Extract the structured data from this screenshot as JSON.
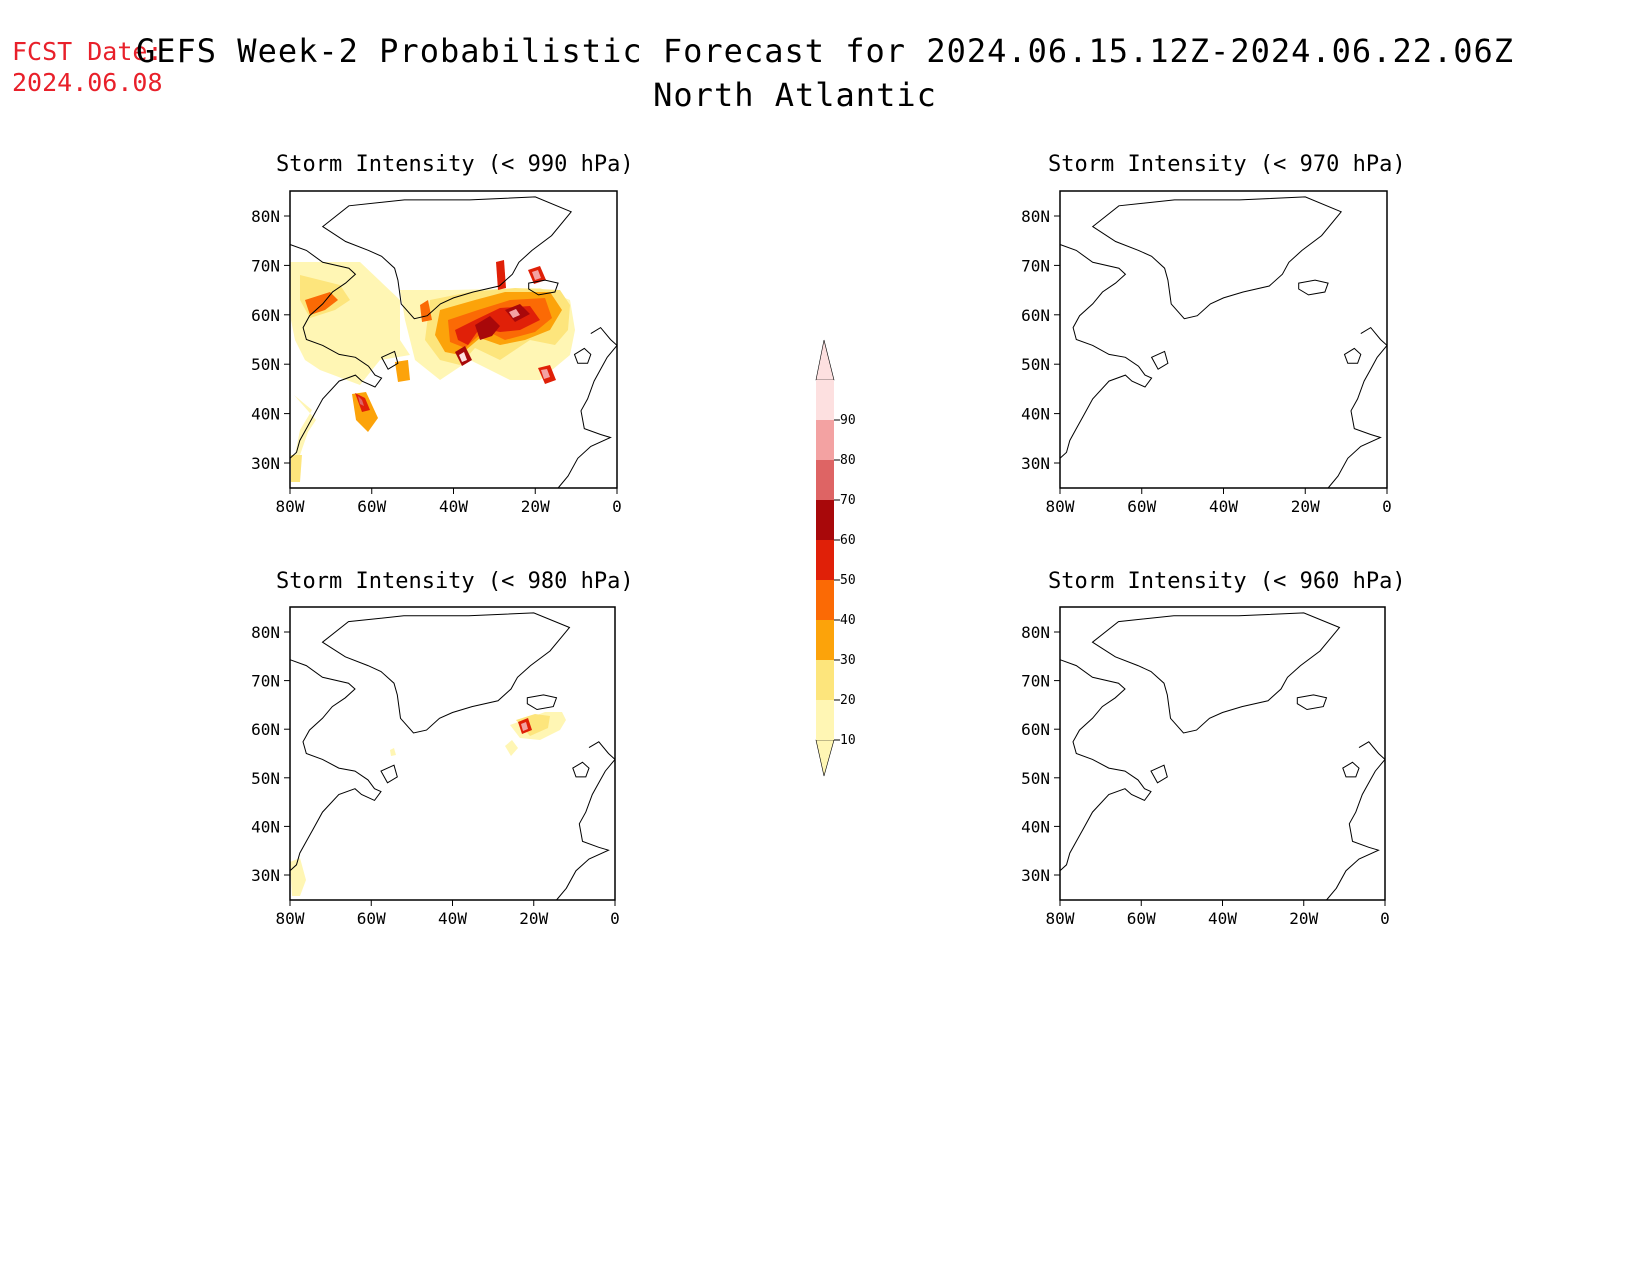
{
  "header": {
    "fcst_label": "FCST Date:",
    "fcst_date": "2024.06.08",
    "title": "GEFS Week-2 Probabilistic Forecast for 2024.06.15.12Z-2024.06.22.06Z",
    "subtitle": "North Atlantic"
  },
  "axes": {
    "lat_ticks": [
      "80N",
      "70N",
      "60N",
      "50N",
      "40N",
      "30N"
    ],
    "lon_ticks": [
      "80W",
      "60W",
      "40W",
      "20W",
      "0"
    ]
  },
  "panels": [
    {
      "id": "p990",
      "title": "Storm Intensity (< 990 hPa)"
    },
    {
      "id": "p970",
      "title": "Storm Intensity (< 970 hPa)"
    },
    {
      "id": "p980",
      "title": "Storm Intensity (< 980 hPa)"
    },
    {
      "id": "p960",
      "title": "Storm Intensity (< 960 hPa)"
    }
  ],
  "colorbar": {
    "labels": [
      "10",
      "20",
      "30",
      "40",
      "50",
      "60",
      "70",
      "80",
      "90"
    ],
    "colors": [
      "#fff6b4",
      "#fde57c",
      "#fca30a",
      "#fb6a05",
      "#e02008",
      "#a8080a",
      "#de6464",
      "#f3a2a2",
      "#fde0e0"
    ]
  }
}
